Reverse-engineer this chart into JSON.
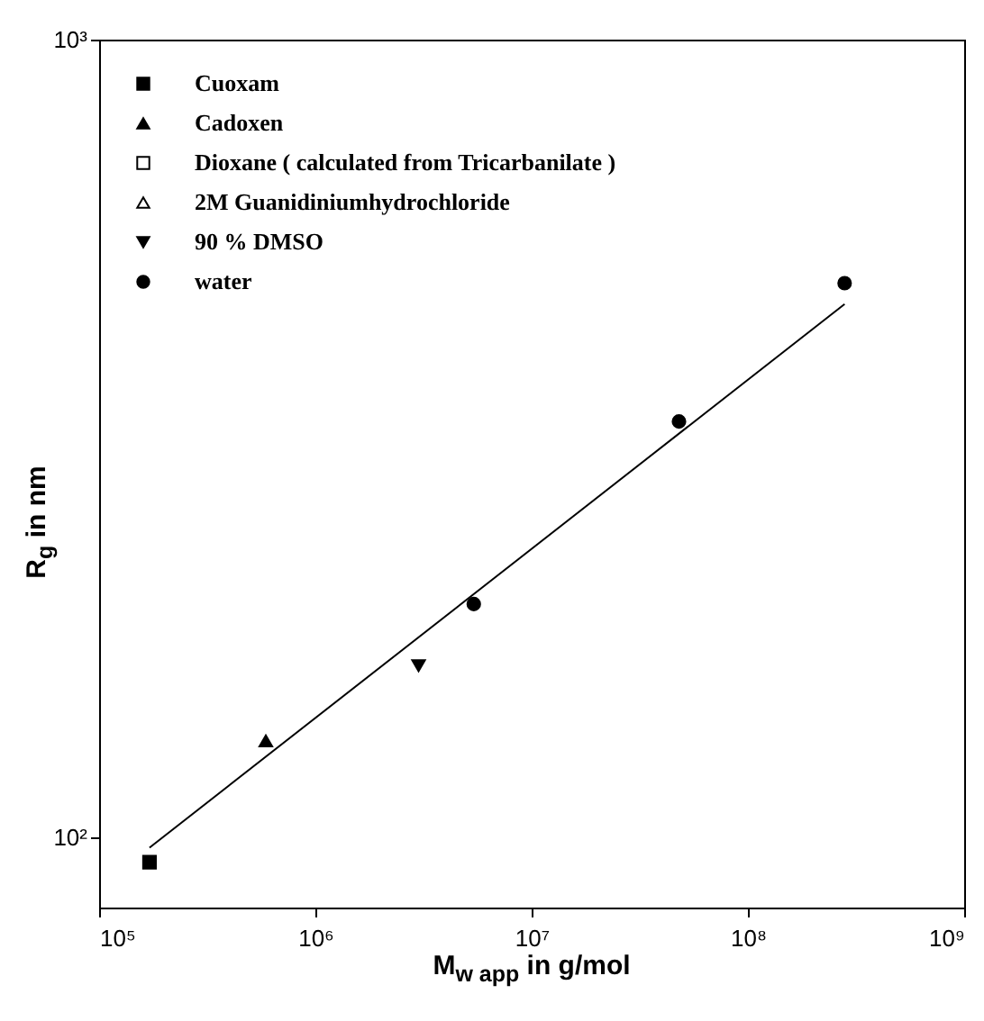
{
  "chart_data": {
    "type": "scatter",
    "xlabel": "M$_{w app}$ in g/mol",
    "ylabel": "R$_{g}$ in nm",
    "log": "xy",
    "grid": false,
    "legend": "top left",
    "xlim": [
      100000,
      1000000000
    ],
    "ylim": [
      81.6,
      1000
    ],
    "xticks": [
      {
        "value": 100000,
        "label": "10⁵"
      },
      {
        "value": 1000000,
        "label": "10⁶"
      },
      {
        "value": 10000000,
        "label": "10⁷"
      },
      {
        "value": 100000000,
        "label": "10⁸"
      },
      {
        "value": 1000000000,
        "label": "10⁹"
      }
    ],
    "yticks": [
      {
        "value": 100,
        "label": "10²"
      },
      {
        "value": 1000,
        "label": "10³"
      }
    ],
    "series": [
      {
        "name": "Cuoxam",
        "color": "#000000",
        "marker": "square",
        "x": [
          171000
        ],
        "values": [
          93
        ]
      },
      {
        "name": "Cadoxen",
        "color": "#000000",
        "marker": "triangle",
        "x": [
          590000
        ],
        "values": [
          132
        ]
      },
      {
        "name": "Dioxane ( calculated from Tricarbanilate )",
        "color": "#ffffff",
        "marker": "square"
      },
      {
        "name": "2M Guanidiniumhydrochloride",
        "color": "#ffffff",
        "marker": "triangle"
      },
      {
        "name": "90 % DMSO",
        "color": "#000000",
        "marker": "triangle-down",
        "x": [
          3000000
        ],
        "values": [
          164
        ]
      },
      {
        "name": "water",
        "color": "#000000",
        "marker": "circle",
        "x": [
          5400000,
          48000000,
          280000000
        ],
        "values": [
          196,
          332,
          495
        ]
      },
      {
        "type": "line",
        "color": "#000000",
        "line_style": "solid",
        "x": [
          171000,
          280000000
        ],
        "values": [
          97,
          466
        ]
      }
    ]
  }
}
